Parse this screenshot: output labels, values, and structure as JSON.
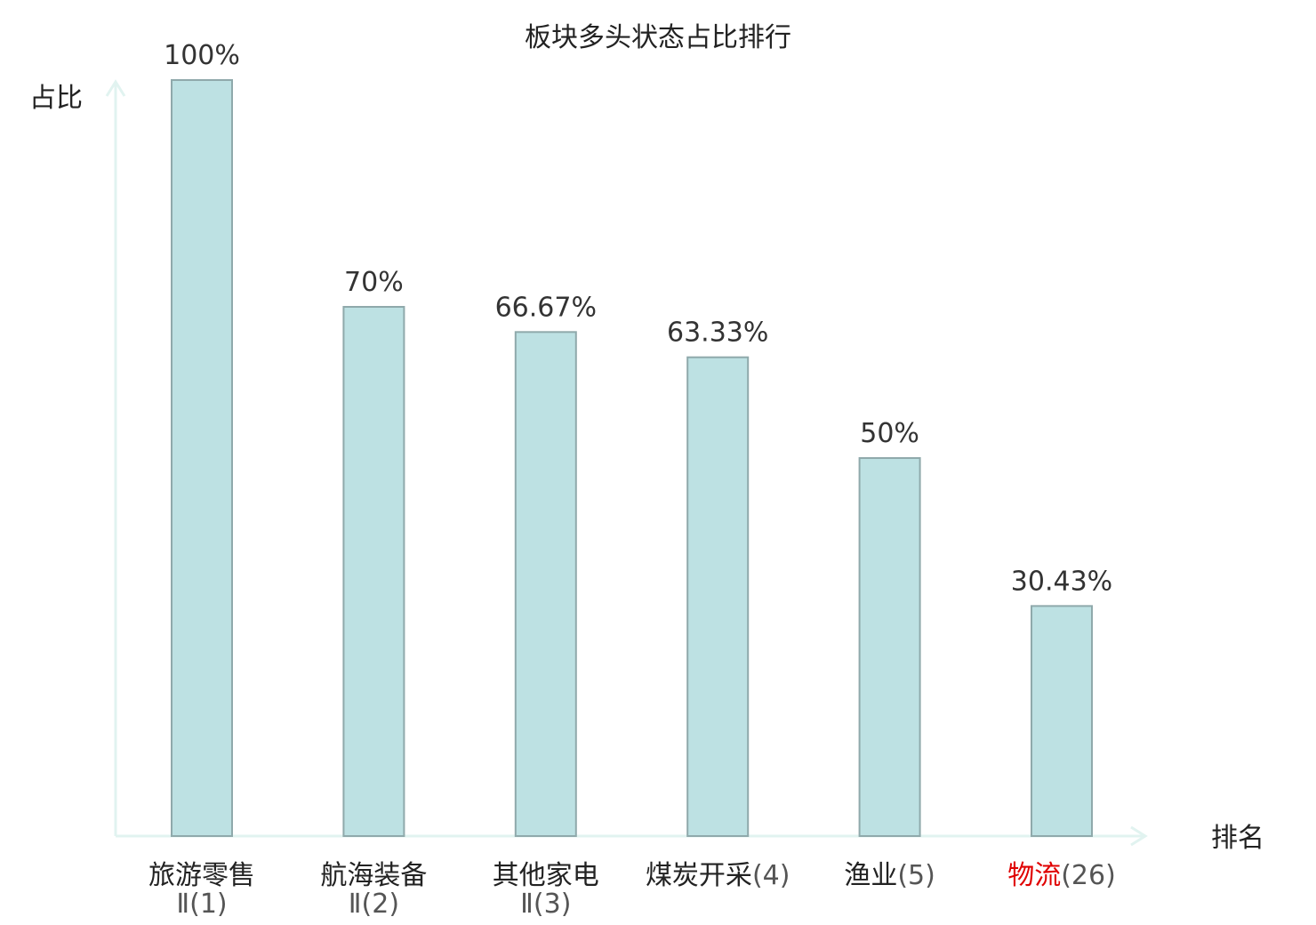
{
  "chart_data": {
    "type": "bar",
    "title": "板块多头状态占比排行",
    "ylabel": "占比",
    "xlabel": "排名",
    "ylim": [
      0,
      100
    ],
    "grid": false,
    "categories": [
      {
        "name": "旅游零售",
        "rank": "Ⅱ(1)",
        "highlight": false
      },
      {
        "name": "航海装备",
        "rank": "Ⅱ(2)",
        "highlight": false
      },
      {
        "name": "其他家电",
        "rank": "Ⅱ(3)",
        "highlight": false
      },
      {
        "name": "煤炭开采",
        "rank": "(4)",
        "highlight": false
      },
      {
        "name": "渔业",
        "rank": "(5)",
        "highlight": false
      },
      {
        "name": "物流",
        "rank": "(26)",
        "highlight": true
      }
    ],
    "values": [
      100,
      70,
      66.67,
      63.33,
      50,
      30.43
    ],
    "value_labels": [
      "100%",
      "70%",
      "66.67%",
      "63.33%",
      "50%",
      "30.43%"
    ],
    "colors": {
      "bar_fill": "#bde1e3",
      "bar_stroke": "#8fa9ab",
      "axis": "#e1f3f0",
      "highlight_text": "#e00000",
      "text": "#222222"
    }
  }
}
